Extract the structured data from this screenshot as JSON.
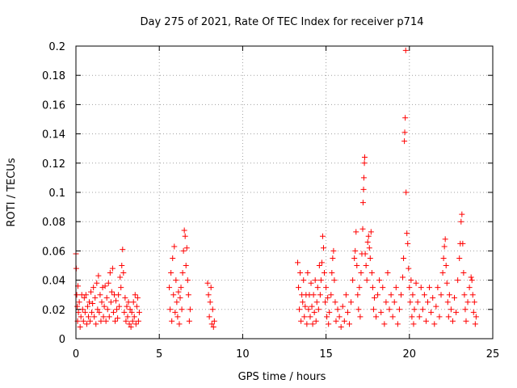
{
  "chart_data": {
    "type": "scatter",
    "title": "Day 275 of 2021, Rate Of TEC Index for receiver p714",
    "xlabel": "GPS time / hours",
    "ylabel": "ROTI / TECUs",
    "xlim": [
      0,
      25
    ],
    "ylim": [
      0,
      0.2
    ],
    "xticks": [
      0,
      5,
      10,
      15,
      20,
      25
    ],
    "xtick_labels": [
      "0",
      "5",
      "10",
      "15",
      "20",
      "25"
    ],
    "yticks": [
      0,
      0.02,
      0.04,
      0.06,
      0.08,
      0.1,
      0.12,
      0.14,
      0.16,
      0.18,
      0.2
    ],
    "ytick_labels": [
      "0",
      "0.02",
      "0.04",
      "0.06",
      "0.08",
      "0.1",
      "0.12",
      "0.14",
      "0.16",
      "0.18",
      "0.2"
    ],
    "grid": true,
    "marker": "plus",
    "color": "#ff0000",
    "series": [
      {
        "name": "ROTI",
        "points": [
          [
            0.0,
            0.058
          ],
          [
            0.02,
            0.048
          ],
          [
            0.05,
            0.03
          ],
          [
            0.08,
            0.022
          ],
          [
            0.1,
            0.012
          ],
          [
            0.12,
            0.036
          ],
          [
            0.15,
            0.018
          ],
          [
            0.2,
            0.025
          ],
          [
            0.25,
            0.008
          ],
          [
            0.3,
            0.015
          ],
          [
            0.35,
            0.03
          ],
          [
            0.4,
            0.02
          ],
          [
            0.45,
            0.012
          ],
          [
            0.5,
            0.028
          ],
          [
            0.55,
            0.018
          ],
          [
            0.6,
            0.03
          ],
          [
            0.65,
            0.01
          ],
          [
            0.7,
            0.022
          ],
          [
            0.75,
            0.015
          ],
          [
            0.8,
            0.025
          ],
          [
            0.85,
            0.012
          ],
          [
            0.9,
            0.032
          ],
          [
            0.95,
            0.018
          ],
          [
            1.0,
            0.024
          ],
          [
            1.05,
            0.035
          ],
          [
            1.1,
            0.015
          ],
          [
            1.15,
            0.028
          ],
          [
            1.2,
            0.01
          ],
          [
            1.25,
            0.038
          ],
          [
            1.3,
            0.02
          ],
          [
            1.35,
            0.043
          ],
          [
            1.4,
            0.018
          ],
          [
            1.45,
            0.03
          ],
          [
            1.5,
            0.012
          ],
          [
            1.55,
            0.025
          ],
          [
            1.6,
            0.035
          ],
          [
            1.65,
            0.015
          ],
          [
            1.7,
            0.022
          ],
          [
            1.75,
            0.036
          ],
          [
            1.8,
            0.012
          ],
          [
            1.85,
            0.028
          ],
          [
            1.9,
            0.02
          ],
          [
            1.95,
            0.038
          ],
          [
            2.0,
            0.015
          ],
          [
            2.05,
            0.045
          ],
          [
            2.1,
            0.025
          ],
          [
            2.15,
            0.032
          ],
          [
            2.2,
            0.048
          ],
          [
            2.25,
            0.018
          ],
          [
            2.3,
            0.03
          ],
          [
            2.35,
            0.012
          ],
          [
            2.4,
            0.026
          ],
          [
            2.45,
            0.02
          ],
          [
            2.5,
            0.014
          ],
          [
            2.55,
            0.03
          ],
          [
            2.6,
            0.022
          ],
          [
            2.65,
            0.042
          ],
          [
            2.7,
            0.035
          ],
          [
            2.75,
            0.05
          ],
          [
            2.8,
            0.061
          ],
          [
            2.85,
            0.045
          ],
          [
            2.9,
            0.018
          ],
          [
            2.95,
            0.028
          ],
          [
            3.0,
            0.012
          ],
          [
            3.05,
            0.022
          ],
          [
            3.1,
            0.015
          ],
          [
            3.15,
            0.025
          ],
          [
            3.2,
            0.01
          ],
          [
            3.25,
            0.02
          ],
          [
            3.3,
            0.008
          ],
          [
            3.35,
            0.018
          ],
          [
            3.4,
            0.012
          ],
          [
            3.45,
            0.025
          ],
          [
            3.5,
            0.015
          ],
          [
            3.55,
            0.03
          ],
          [
            3.6,
            0.01
          ],
          [
            3.65,
            0.022
          ],
          [
            3.7,
            0.028
          ],
          [
            3.75,
            0.012
          ],
          [
            3.8,
            0.018
          ],
          [
            5.6,
            0.035
          ],
          [
            5.65,
            0.02
          ],
          [
            5.7,
            0.045
          ],
          [
            5.75,
            0.012
          ],
          [
            5.8,
            0.055
          ],
          [
            5.85,
            0.03
          ],
          [
            5.9,
            0.063
          ],
          [
            5.95,
            0.018
          ],
          [
            6.0,
            0.04
          ],
          [
            6.05,
            0.025
          ],
          [
            6.1,
            0.015
          ],
          [
            6.15,
            0.032
          ],
          [
            6.2,
            0.01
          ],
          [
            6.25,
            0.028
          ],
          [
            6.3,
            0.035
          ],
          [
            6.35,
            0.02
          ],
          [
            6.4,
            0.045
          ],
          [
            6.45,
            0.06
          ],
          [
            6.5,
            0.074
          ],
          [
            6.55,
            0.07
          ],
          [
            6.6,
            0.05
          ],
          [
            6.65,
            0.062
          ],
          [
            6.7,
            0.04
          ],
          [
            6.75,
            0.03
          ],
          [
            6.8,
            0.012
          ],
          [
            6.85,
            0.02
          ],
          [
            7.9,
            0.038
          ],
          [
            7.95,
            0.03
          ],
          [
            8.0,
            0.015
          ],
          [
            8.05,
            0.025
          ],
          [
            8.1,
            0.035
          ],
          [
            8.15,
            0.01
          ],
          [
            8.2,
            0.02
          ],
          [
            8.25,
            0.008
          ],
          [
            8.3,
            0.012
          ],
          [
            13.3,
            0.052
          ],
          [
            13.35,
            0.035
          ],
          [
            13.4,
            0.02
          ],
          [
            13.45,
            0.045
          ],
          [
            13.5,
            0.012
          ],
          [
            13.55,
            0.03
          ],
          [
            13.6,
            0.025
          ],
          [
            13.65,
            0.04
          ],
          [
            13.7,
            0.015
          ],
          [
            13.75,
            0.022
          ],
          [
            13.8,
            0.03
          ],
          [
            13.85,
            0.01
          ],
          [
            13.9,
            0.045
          ],
          [
            13.95,
            0.02
          ],
          [
            14.0,
            0.03
          ],
          [
            14.05,
            0.015
          ],
          [
            14.1,
            0.038
          ],
          [
            14.15,
            0.022
          ],
          [
            14.2,
            0.01
          ],
          [
            14.25,
            0.03
          ],
          [
            14.3,
            0.018
          ],
          [
            14.35,
            0.04
          ],
          [
            14.4,
            0.012
          ],
          [
            14.45,
            0.025
          ],
          [
            14.5,
            0.035
          ],
          [
            14.55,
            0.02
          ],
          [
            14.6,
            0.05
          ],
          [
            14.65,
            0.03
          ],
          [
            14.7,
            0.04
          ],
          [
            14.75,
            0.052
          ],
          [
            14.8,
            0.07
          ],
          [
            14.85,
            0.062
          ],
          [
            14.9,
            0.045
          ],
          [
            14.95,
            0.025
          ],
          [
            15.0,
            0.035
          ],
          [
            15.05,
            0.015
          ],
          [
            15.1,
            0.028
          ],
          [
            15.15,
            0.01
          ],
          [
            15.2,
            0.018
          ],
          [
            15.3,
            0.03
          ],
          [
            15.35,
            0.045
          ],
          [
            15.4,
            0.055
          ],
          [
            15.45,
            0.06
          ],
          [
            15.5,
            0.04
          ],
          [
            15.55,
            0.025
          ],
          [
            15.6,
            0.012
          ],
          [
            15.7,
            0.02
          ],
          [
            15.8,
            0.015
          ],
          [
            15.9,
            0.008
          ],
          [
            16.0,
            0.022
          ],
          [
            16.1,
            0.012
          ],
          [
            16.2,
            0.03
          ],
          [
            16.3,
            0.018
          ],
          [
            16.4,
            0.01
          ],
          [
            16.5,
            0.025
          ],
          [
            16.6,
            0.04
          ],
          [
            16.7,
            0.055
          ],
          [
            16.75,
            0.06
          ],
          [
            16.8,
            0.073
          ],
          [
            16.85,
            0.05
          ],
          [
            16.9,
            0.03
          ],
          [
            16.95,
            0.02
          ],
          [
            17.0,
            0.035
          ],
          [
            17.05,
            0.015
          ],
          [
            17.1,
            0.045
          ],
          [
            17.15,
            0.058
          ],
          [
            17.2,
            0.075
          ],
          [
            17.22,
            0.093
          ],
          [
            17.25,
            0.102
          ],
          [
            17.27,
            0.11
          ],
          [
            17.3,
            0.12
          ],
          [
            17.32,
            0.124
          ],
          [
            17.35,
            0.058
          ],
          [
            17.4,
            0.05
          ],
          [
            17.45,
            0.04
          ],
          [
            17.5,
            0.066
          ],
          [
            17.55,
            0.07
          ],
          [
            17.6,
            0.062
          ],
          [
            17.65,
            0.055
          ],
          [
            17.7,
            0.073
          ],
          [
            17.75,
            0.045
          ],
          [
            17.8,
            0.035
          ],
          [
            17.85,
            0.02
          ],
          [
            17.9,
            0.028
          ],
          [
            18.0,
            0.015
          ],
          [
            18.1,
            0.03
          ],
          [
            18.2,
            0.04
          ],
          [
            18.3,
            0.018
          ],
          [
            18.4,
            0.035
          ],
          [
            18.5,
            0.01
          ],
          [
            18.6,
            0.025
          ],
          [
            18.7,
            0.045
          ],
          [
            18.8,
            0.02
          ],
          [
            18.9,
            0.03
          ],
          [
            19.0,
            0.015
          ],
          [
            19.1,
            0.025
          ],
          [
            19.2,
            0.035
          ],
          [
            19.3,
            0.01
          ],
          [
            19.4,
            0.02
          ],
          [
            19.5,
            0.03
          ],
          [
            19.6,
            0.042
          ],
          [
            19.65,
            0.055
          ],
          [
            19.7,
            0.135
          ],
          [
            19.72,
            0.141
          ],
          [
            19.75,
            0.151
          ],
          [
            19.78,
            0.197
          ],
          [
            19.8,
            0.1
          ],
          [
            19.85,
            0.072
          ],
          [
            19.9,
            0.065
          ],
          [
            19.95,
            0.048
          ],
          [
            20.0,
            0.035
          ],
          [
            20.05,
            0.025
          ],
          [
            20.1,
            0.04
          ],
          [
            20.15,
            0.015
          ],
          [
            20.2,
            0.03
          ],
          [
            20.25,
            0.01
          ],
          [
            20.3,
            0.02
          ],
          [
            20.4,
            0.038
          ],
          [
            20.5,
            0.025
          ],
          [
            20.6,
            0.015
          ],
          [
            20.7,
            0.035
          ],
          [
            20.8,
            0.02
          ],
          [
            20.9,
            0.03
          ],
          [
            21.0,
            0.012
          ],
          [
            21.1,
            0.025
          ],
          [
            21.2,
            0.035
          ],
          [
            21.3,
            0.018
          ],
          [
            21.4,
            0.028
          ],
          [
            21.5,
            0.01
          ],
          [
            21.6,
            0.022
          ],
          [
            21.7,
            0.035
          ],
          [
            21.8,
            0.015
          ],
          [
            21.9,
            0.03
          ],
          [
            22.0,
            0.045
          ],
          [
            22.05,
            0.055
          ],
          [
            22.1,
            0.063
          ],
          [
            22.15,
            0.068
          ],
          [
            22.2,
            0.05
          ],
          [
            22.25,
            0.038
          ],
          [
            22.3,
            0.025
          ],
          [
            22.35,
            0.015
          ],
          [
            22.4,
            0.03
          ],
          [
            22.5,
            0.02
          ],
          [
            22.6,
            0.012
          ],
          [
            22.7,
            0.028
          ],
          [
            22.8,
            0.018
          ],
          [
            22.9,
            0.04
          ],
          [
            23.0,
            0.055
          ],
          [
            23.05,
            0.065
          ],
          [
            23.1,
            0.08
          ],
          [
            23.15,
            0.085
          ],
          [
            23.2,
            0.065
          ],
          [
            23.25,
            0.045
          ],
          [
            23.3,
            0.03
          ],
          [
            23.35,
            0.02
          ],
          [
            23.4,
            0.012
          ],
          [
            23.5,
            0.025
          ],
          [
            23.6,
            0.035
          ],
          [
            23.7,
            0.042
          ],
          [
            23.75,
            0.04
          ],
          [
            23.8,
            0.03
          ],
          [
            23.85,
            0.018
          ],
          [
            23.9,
            0.025
          ],
          [
            23.95,
            0.01
          ],
          [
            24.0,
            0.015
          ]
        ]
      }
    ]
  }
}
